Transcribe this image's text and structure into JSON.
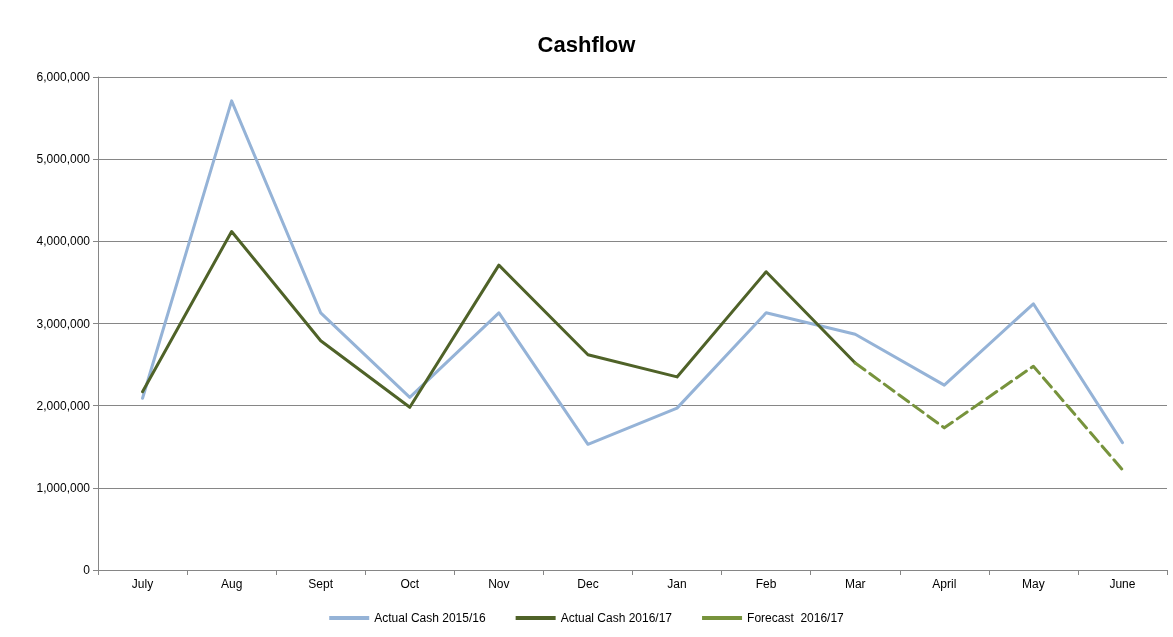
{
  "chart_data": {
    "type": "line",
    "title": "Cashflow",
    "categories": [
      "July",
      "Aug",
      "Sept",
      "Oct",
      "Nov",
      "Dec",
      "Jan",
      "Feb",
      "Mar",
      "April",
      "May",
      "June"
    ],
    "series": [
      {
        "name": "Actual Cash 2015/16",
        "color": "#95b3d7",
        "line_style": "solid",
        "values": [
          2090000,
          5710000,
          3130000,
          2100000,
          3130000,
          1530000,
          1970000,
          3130000,
          2870000,
          2250000,
          3240000,
          1550000
        ]
      },
      {
        "name": "Actual Cash 2016/17",
        "color": "#4f6228",
        "line_style": "solid",
        "values": [
          2170000,
          4120000,
          2790000,
          1980000,
          3710000,
          2620000,
          2350000,
          3630000,
          2520000,
          null,
          null,
          null
        ]
      },
      {
        "name": "Forecast  2016/17",
        "color": "#77933c",
        "line_style": "dashed",
        "values": [
          null,
          null,
          null,
          null,
          null,
          null,
          null,
          null,
          2520000,
          1730000,
          2480000,
          1220000
        ]
      }
    ],
    "ylim": [
      0,
      6000000
    ],
    "yticks": [
      {
        "value": 0,
        "label": "0"
      },
      {
        "value": 1000000,
        "label": "1,000,000"
      },
      {
        "value": 2000000,
        "label": "2,000,000"
      },
      {
        "value": 3000000,
        "label": "3,000,000"
      },
      {
        "value": 4000000,
        "label": "4,000,000"
      },
      {
        "value": 5000000,
        "label": "5,000,000"
      },
      {
        "value": 6000000,
        "label": "6,000,000"
      }
    ],
    "grid": "y",
    "legend": "bottom",
    "marker": "none"
  }
}
